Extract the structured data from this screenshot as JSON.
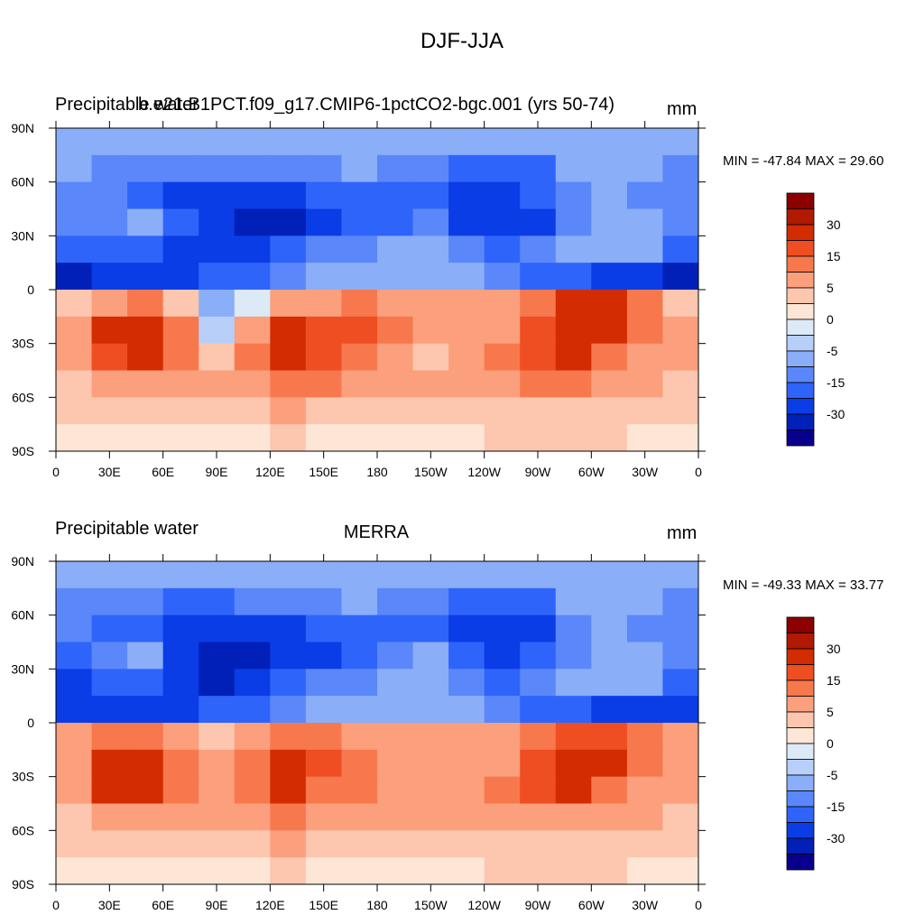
{
  "figure_title": "DJF-JJA",
  "chart_data": [
    {
      "type": "heatmap",
      "title_left": "Precipitable water",
      "title_center": "b.e21.B1PCT.f09_g17.CMIP6-1pctCO2-bgc.001 (yrs 50-74)",
      "units": "mm",
      "min": -47.84,
      "max": 29.6,
      "min_max_label": "MIN = -47.84 MAX =  29.60",
      "x_ticks": [
        "0",
        "30E",
        "60E",
        "90E",
        "120E",
        "150E",
        "180",
        "150W",
        "120W",
        "90W",
        "60W",
        "30W",
        "0"
      ],
      "y_ticks": [
        "90N",
        "60N",
        "30N",
        "0",
        "30S",
        "60S",
        "90S"
      ],
      "xlim": [
        0,
        360
      ],
      "ylim": [
        -90,
        90
      ],
      "levels": [
        -40,
        -30,
        -20,
        -15,
        -10,
        -5,
        -2,
        0,
        2,
        5,
        10,
        15,
        20,
        30,
        40
      ],
      "colorbar_labels": [
        "30",
        "15",
        "5",
        "0",
        "-5",
        "-15",
        "-30"
      ],
      "colors": [
        "#08008C",
        "#0020B8",
        "#0A3DE6",
        "#2F64FA",
        "#5A88FA",
        "#8AAEF7",
        "#B7CFF9",
        "#DCEAF8",
        "#FDE6D6",
        "#FDC6AE",
        "#FB9F7D",
        "#F7784C",
        "#EE4E22",
        "#D22C00",
        "#B01A00",
        "#8C0000"
      ],
      "field": [
        [
          -8,
          -8,
          -9,
          -9,
          -9,
          -9,
          -8,
          -8,
          -8,
          -8,
          -8,
          -8,
          -8,
          -8,
          -6,
          -6,
          -8,
          -8
        ],
        [
          -10,
          -12,
          -13,
          -14,
          -15,
          -15,
          -14,
          -12,
          -10,
          -12,
          -14,
          -18,
          -18,
          -16,
          -10,
          -8,
          -10,
          -12
        ],
        [
          -12,
          -15,
          -18,
          -22,
          -26,
          -28,
          -25,
          -20,
          -18,
          -16,
          -18,
          -22,
          -28,
          -20,
          -12,
          -10,
          -12,
          -14
        ],
        [
          -12,
          -14,
          -10,
          -20,
          -28,
          -34,
          -32,
          -26,
          -20,
          -16,
          -12,
          -22,
          -30,
          -22,
          -12,
          -10,
          -10,
          -14
        ],
        [
          -20,
          -18,
          -16,
          -24,
          -30,
          -26,
          -20,
          -14,
          -12,
          -10,
          -8,
          -12,
          -16,
          -12,
          -10,
          -8,
          -10,
          -18
        ],
        [
          -32,
          -28,
          -25,
          -24,
          -18,
          -16,
          -12,
          -10,
          -8,
          -8,
          -8,
          -10,
          -14,
          -20,
          -20,
          -22,
          -28,
          -34
        ],
        [
          2,
          6,
          10,
          4,
          -8,
          -2,
          5,
          8,
          10,
          8,
          6,
          5,
          5,
          10,
          22,
          20,
          12,
          4
        ],
        [
          6,
          20,
          22,
          10,
          -4,
          6,
          22,
          18,
          16,
          10,
          6,
          5,
          8,
          18,
          28,
          24,
          10,
          6
        ],
        [
          5,
          18,
          20,
          10,
          4,
          10,
          24,
          18,
          12,
          6,
          4,
          8,
          12,
          18,
          22,
          14,
          6,
          6
        ],
        [
          4,
          8,
          8,
          6,
          6,
          8,
          12,
          10,
          8,
          6,
          5,
          6,
          8,
          10,
          10,
          8,
          6,
          4
        ],
        [
          2,
          4,
          4,
          3,
          3,
          4,
          5,
          4,
          4,
          3,
          3,
          3,
          4,
          4,
          4,
          4,
          3,
          3
        ],
        [
          1,
          1,
          1,
          1,
          1,
          1,
          2,
          1,
          1,
          1,
          1,
          1,
          2,
          2,
          2,
          2,
          1,
          1
        ]
      ]
    },
    {
      "type": "heatmap",
      "title_left": "Precipitable water",
      "title_center": "MERRA",
      "units": "mm",
      "min": -49.33,
      "max": 33.77,
      "min_max_label": "MIN = -49.33 MAX =  33.77",
      "x_ticks": [
        "0",
        "30E",
        "60E",
        "90E",
        "120E",
        "150E",
        "180",
        "150W",
        "120W",
        "90W",
        "60W",
        "30W",
        "0"
      ],
      "y_ticks": [
        "90N",
        "60N",
        "30N",
        "0",
        "30S",
        "60S",
        "90S"
      ],
      "xlim": [
        0,
        360
      ],
      "ylim": [
        -90,
        90
      ],
      "levels": [
        -40,
        -30,
        -20,
        -15,
        -10,
        -5,
        -2,
        0,
        2,
        5,
        10,
        15,
        20,
        30,
        40
      ],
      "colorbar_labels": [
        "30",
        "15",
        "5",
        "0",
        "-5",
        "-15",
        "-30"
      ],
      "colors": [
        "#08008C",
        "#0020B8",
        "#0A3DE6",
        "#2F64FA",
        "#5A88FA",
        "#8AAEF7",
        "#B7CFF9",
        "#DCEAF8",
        "#FDE6D6",
        "#FDC6AE",
        "#FB9F7D",
        "#F7784C",
        "#EE4E22",
        "#D22C00",
        "#B01A00",
        "#8C0000"
      ],
      "field": [
        [
          -8,
          -8,
          -9,
          -9,
          -9,
          -9,
          -8,
          -8,
          -8,
          -8,
          -8,
          -8,
          -8,
          -8,
          -6,
          -6,
          -8,
          -8
        ],
        [
          -12,
          -14,
          -15,
          -16,
          -16,
          -15,
          -14,
          -12,
          -10,
          -12,
          -14,
          -18,
          -18,
          -16,
          -10,
          -8,
          -10,
          -12
        ],
        [
          -14,
          -18,
          -20,
          -24,
          -26,
          -28,
          -25,
          -20,
          -18,
          -16,
          -18,
          -22,
          -30,
          -22,
          -12,
          -10,
          -12,
          -14
        ],
        [
          -16,
          -14,
          -10,
          -30,
          -36,
          -34,
          -30,
          -24,
          -18,
          -14,
          -10,
          -20,
          -30,
          -20,
          -12,
          -10,
          -10,
          -14
        ],
        [
          -24,
          -18,
          -16,
          -30,
          -36,
          -28,
          -20,
          -14,
          -12,
          -10,
          -8,
          -12,
          -16,
          -12,
          -10,
          -8,
          -10,
          -18
        ],
        [
          -28,
          -26,
          -25,
          -22,
          -18,
          -16,
          -12,
          -10,
          -8,
          -8,
          -8,
          -10,
          -14,
          -20,
          -20,
          -22,
          -26,
          -30
        ],
        [
          6,
          10,
          12,
          8,
          4,
          8,
          10,
          10,
          8,
          6,
          5,
          5,
          5,
          10,
          18,
          16,
          10,
          6
        ],
        [
          8,
          24,
          24,
          14,
          6,
          12,
          26,
          18,
          12,
          8,
          6,
          5,
          8,
          16,
          26,
          22,
          10,
          8
        ],
        [
          6,
          20,
          22,
          12,
          6,
          10,
          20,
          14,
          10,
          6,
          5,
          6,
          10,
          16,
          20,
          14,
          6,
          6
        ],
        [
          4,
          8,
          8,
          6,
          6,
          8,
          10,
          8,
          6,
          6,
          5,
          6,
          6,
          8,
          8,
          8,
          6,
          4
        ],
        [
          3,
          4,
          4,
          4,
          4,
          4,
          5,
          4,
          4,
          3,
          3,
          3,
          4,
          4,
          4,
          4,
          3,
          3
        ],
        [
          1,
          1,
          1,
          1,
          1,
          1,
          2,
          1,
          1,
          1,
          1,
          1,
          2,
          2,
          2,
          2,
          1,
          1
        ]
      ]
    }
  ]
}
